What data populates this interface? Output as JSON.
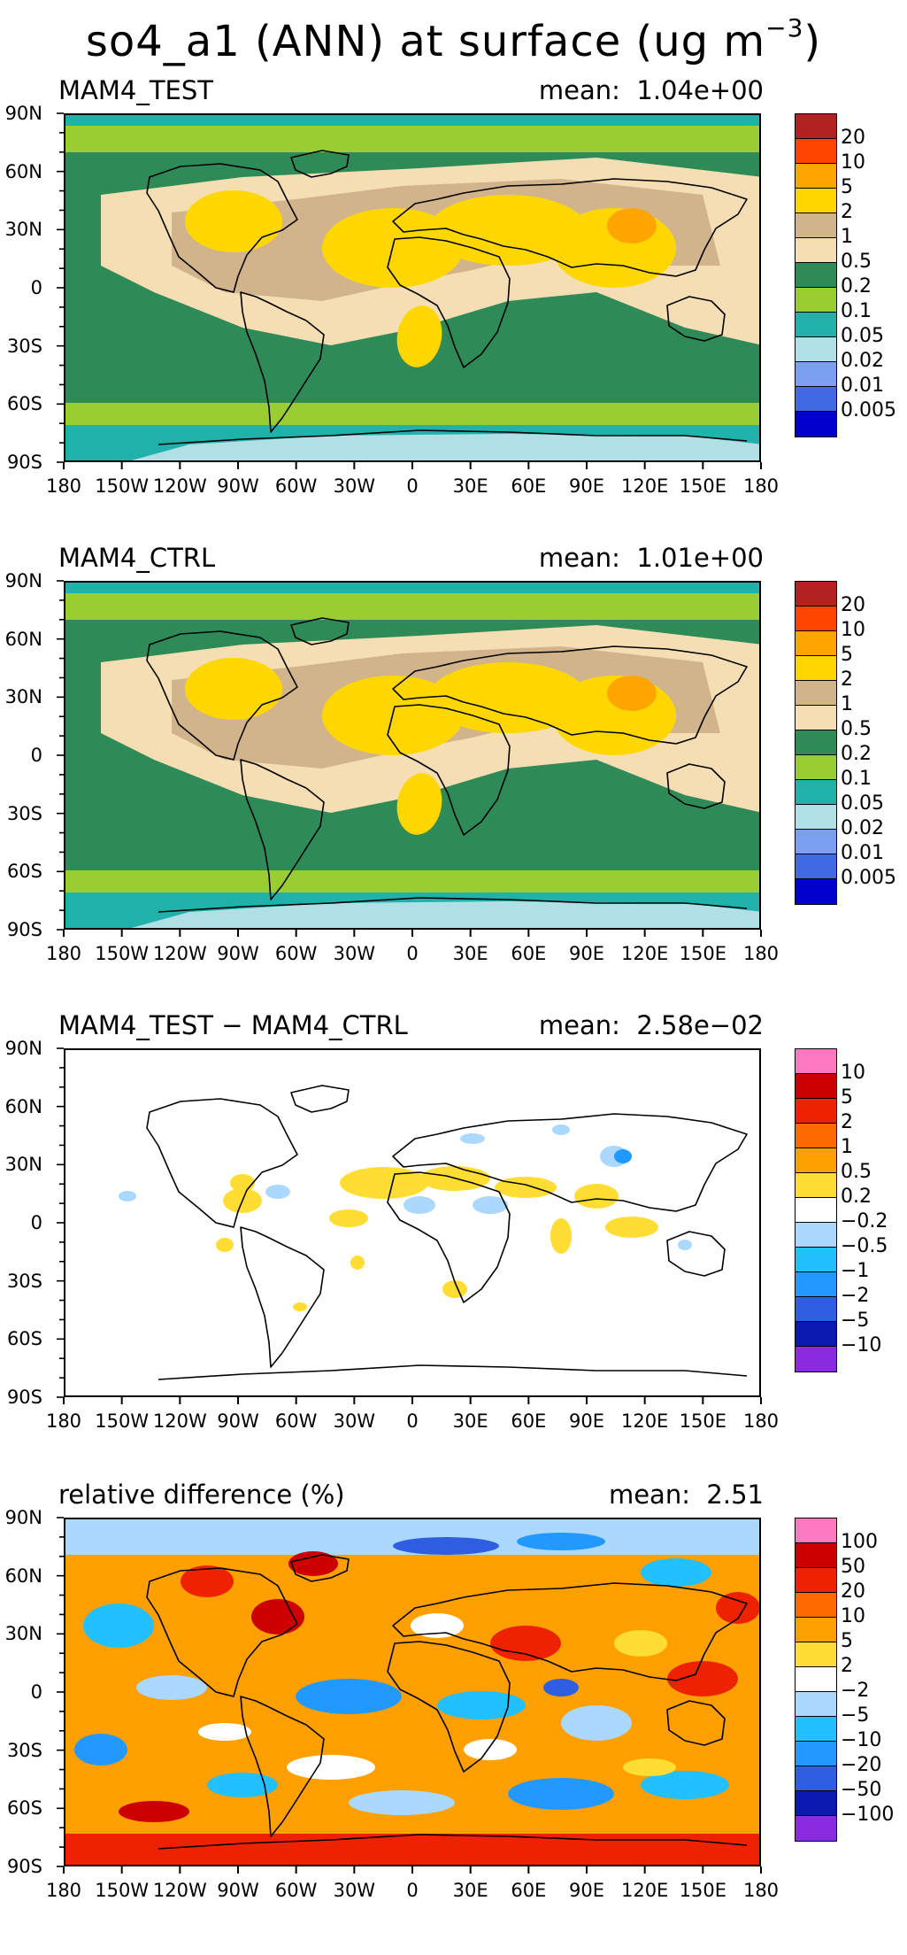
{
  "title": {
    "main": "so4_a1 (ANN) at surface (ug m",
    "exponent": "−3",
    "close": ")"
  },
  "axes": {
    "lat_labels": [
      "90N",
      "60N",
      "30N",
      "0",
      "30S",
      "60S",
      "90S"
    ],
    "lon_labels": [
      "180",
      "150W",
      "120W",
      "90W",
      "60W",
      "30W",
      "0",
      "30E",
      "60E",
      "90E",
      "120E",
      "150E",
      "180"
    ]
  },
  "colors": {
    "level_dark": "#b22222",
    "level_red": "#ff4500",
    "level_orange": "#ffa500",
    "level_yellow": "#ffd700",
    "level_tan": "#d2b48c",
    "level_cream": "#f5deb3",
    "level_darkgreen": "#2e8b57",
    "level_green": "#9acd32",
    "level_teal": "#20b2aa",
    "level_lightblue": "#b0e0e6",
    "level_cornflower": "#7ba0ef",
    "level_royal": "#4169e1",
    "level_blue": "#0000cd",
    "diff_pink": "#ff79c0",
    "diff_darkred": "#cc0000",
    "diff_red": "#ee2200",
    "diff_orange": "#ff6a00",
    "diff_lightorange": "#ff9f00",
    "diff_yellow": "#ffdd33",
    "diff_white": "#ffffff",
    "diff_paleblue": "#aad8ff",
    "diff_skyblue": "#22c0ff",
    "diff_dodger": "#2299ff",
    "diff_mediumblue": "#2f5fe0",
    "diff_navy": "#0a1ab0",
    "diff_purple": "#8a2be2"
  },
  "panels": [
    {
      "label": "MAM4_TEST",
      "mean_label": "mean:",
      "mean_value": "1.04e+00",
      "colorbar_labels": [
        "20",
        "10",
        "5",
        "2",
        "1",
        "0.5",
        "0.2",
        "0.1",
        "0.05",
        "0.02",
        "0.01",
        "0.005"
      ],
      "colorbar_colors": [
        "#b22222",
        "#ff4500",
        "#ffa500",
        "#ffd700",
        "#d2b48c",
        "#f5deb3",
        "#2e8b57",
        "#9acd32",
        "#20b2aa",
        "#b0e0e6",
        "#7ba0ef",
        "#4169e1",
        "#0000cd"
      ]
    },
    {
      "label": "MAM4_CTRL",
      "mean_label": "mean:",
      "mean_value": "1.01e+00",
      "colorbar_labels": [
        "20",
        "10",
        "5",
        "2",
        "1",
        "0.5",
        "0.2",
        "0.1",
        "0.05",
        "0.02",
        "0.01",
        "0.005"
      ],
      "colorbar_colors": [
        "#b22222",
        "#ff4500",
        "#ffa500",
        "#ffd700",
        "#d2b48c",
        "#f5deb3",
        "#2e8b57",
        "#9acd32",
        "#20b2aa",
        "#b0e0e6",
        "#7ba0ef",
        "#4169e1",
        "#0000cd"
      ]
    },
    {
      "label": "MAM4_TEST − MAM4_CTRL",
      "mean_label": "mean:",
      "mean_value": "2.58e−02",
      "colorbar_labels": [
        "10",
        "5",
        "2",
        "1",
        "0.5",
        "0.2",
        "−0.2",
        "−0.5",
        "−1",
        "−2",
        "−5",
        "−10"
      ],
      "colorbar_colors": [
        "#ff79c0",
        "#cc0000",
        "#ee2200",
        "#ff6a00",
        "#ff9f00",
        "#ffdd33",
        "#ffffff",
        "#aad8ff",
        "#22c0ff",
        "#2299ff",
        "#2f5fe0",
        "#0a1ab0",
        "#8a2be2"
      ]
    },
    {
      "label": "relative difference (%)",
      "mean_label": "mean:",
      "mean_value": "2.51",
      "colorbar_labels": [
        "100",
        "50",
        "20",
        "10",
        "5",
        "2",
        "−2",
        "−5",
        "−10",
        "−20",
        "−50",
        "−100"
      ],
      "colorbar_colors": [
        "#ff79c0",
        "#cc0000",
        "#ee2200",
        "#ff6a00",
        "#ff9f00",
        "#ffdd33",
        "#ffffff",
        "#aad8ff",
        "#22c0ff",
        "#2299ff",
        "#2f5fe0",
        "#0a1ab0",
        "#8a2be2"
      ]
    }
  ]
}
